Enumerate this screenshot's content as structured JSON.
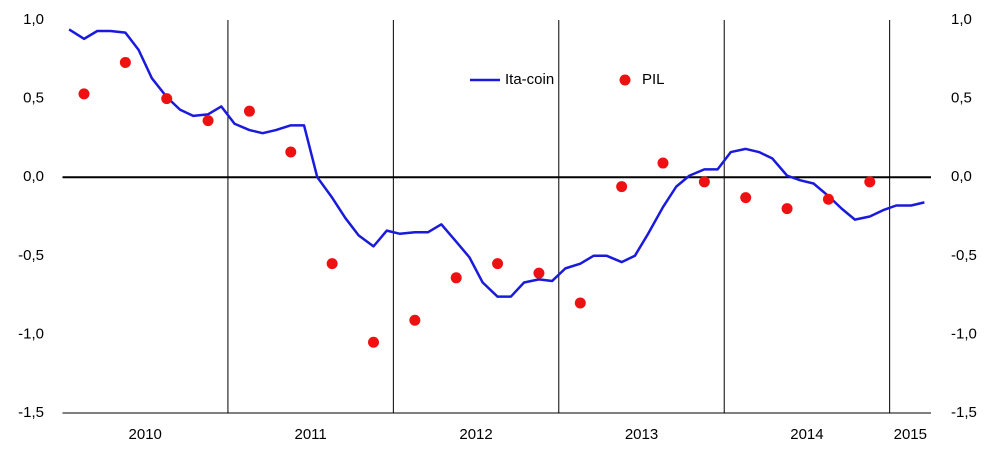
{
  "chart_data": {
    "type": "line",
    "legend_position": "top",
    "xlim": [
      2010,
      2015.25
    ],
    "xticks": [
      {
        "value": 2010.5,
        "label": "2010"
      },
      {
        "value": 2011.5,
        "label": "2011"
      },
      {
        "value": 2012.5,
        "label": "2012"
      },
      {
        "value": 2013.5,
        "label": "2013"
      },
      {
        "value": 2014.5,
        "label": "2014"
      },
      {
        "value": 2015.125,
        "label": "2015"
      }
    ],
    "xgrid": [
      2011,
      2012,
      2013,
      2014,
      2015
    ],
    "ylim": [
      -1.5,
      1.0
    ],
    "yticks": [
      {
        "value": -1.5,
        "label": "-1,5"
      },
      {
        "value": -1.0,
        "label": "-1,0"
      },
      {
        "value": -0.5,
        "label": "-0,5"
      },
      {
        "value": 0.0,
        "label": "0,0"
      },
      {
        "value": 0.5,
        "label": "0,5"
      },
      {
        "value": 1.0,
        "label": "1,0"
      }
    ],
    "y2lim": [
      -1.5,
      1.0
    ],
    "y2ticks": [
      {
        "value": -1.5,
        "label": "-1,5"
      },
      {
        "value": -1.0,
        "label": "-1,0"
      },
      {
        "value": -0.5,
        "label": "-0,5"
      },
      {
        "value": 0.0,
        "label": "0,0"
      },
      {
        "value": 0.5,
        "label": "0,5"
      },
      {
        "value": 1.0,
        "label": "1,0"
      }
    ],
    "series": [
      {
        "name": "Ita-coin",
        "color": "#1a1adc",
        "style": "line",
        "x": [
          2010.04,
          2010.13,
          2010.21,
          2010.29,
          2010.38,
          2010.46,
          2010.54,
          2010.63,
          2010.71,
          2010.79,
          2010.88,
          2010.96,
          2011.04,
          2011.13,
          2011.21,
          2011.29,
          2011.38,
          2011.46,
          2011.54,
          2011.63,
          2011.71,
          2011.79,
          2011.88,
          2011.96,
          2012.04,
          2012.13,
          2012.21,
          2012.29,
          2012.38,
          2012.46,
          2012.54,
          2012.63,
          2012.71,
          2012.79,
          2012.88,
          2012.96,
          2013.04,
          2013.13,
          2013.21,
          2013.29,
          2013.38,
          2013.46,
          2013.54,
          2013.63,
          2013.71,
          2013.79,
          2013.88,
          2013.96,
          2014.04,
          2014.13,
          2014.21,
          2014.29,
          2014.38,
          2014.46,
          2014.54,
          2014.63,
          2014.71,
          2014.79,
          2014.88,
          2014.96,
          2015.04,
          2015.13,
          2015.21
        ],
        "values": [
          0.94,
          0.88,
          0.93,
          0.93,
          0.92,
          0.81,
          0.63,
          0.51,
          0.43,
          0.39,
          0.4,
          0.45,
          0.34,
          0.3,
          0.28,
          0.3,
          0.33,
          0.33,
          0.0,
          -0.13,
          -0.26,
          -0.37,
          -0.44,
          -0.34,
          -0.36,
          -0.35,
          -0.35,
          -0.3,
          -0.41,
          -0.51,
          -0.67,
          -0.76,
          -0.76,
          -0.67,
          -0.65,
          -0.66,
          -0.58,
          -0.55,
          -0.5,
          -0.5,
          -0.54,
          -0.5,
          -0.36,
          -0.19,
          -0.06,
          0.01,
          0.05,
          0.05,
          0.16,
          0.18,
          0.16,
          0.12,
          0.01,
          -0.02,
          -0.04,
          -0.12,
          -0.2,
          -0.27,
          -0.25,
          -0.21,
          -0.18,
          -0.18,
          -0.16
        ]
      },
      {
        "name": "PIL",
        "color": "#ee1111",
        "style": "dots",
        "x": [
          2010.13,
          2010.38,
          2010.63,
          2010.88,
          2011.13,
          2011.38,
          2011.63,
          2011.88,
          2012.13,
          2012.38,
          2012.63,
          2012.88,
          2013.13,
          2013.38,
          2013.63,
          2013.88,
          2014.13,
          2014.38,
          2014.63,
          2014.88
        ],
        "values": [
          0.53,
          0.73,
          0.5,
          0.36,
          0.42,
          0.16,
          -0.55,
          -1.05,
          -0.91,
          -0.64,
          -0.55,
          -0.61,
          -0.8,
          -0.06,
          0.09,
          -0.03,
          -0.13,
          -0.2,
          -0.14,
          -0.03
        ]
      }
    ]
  }
}
